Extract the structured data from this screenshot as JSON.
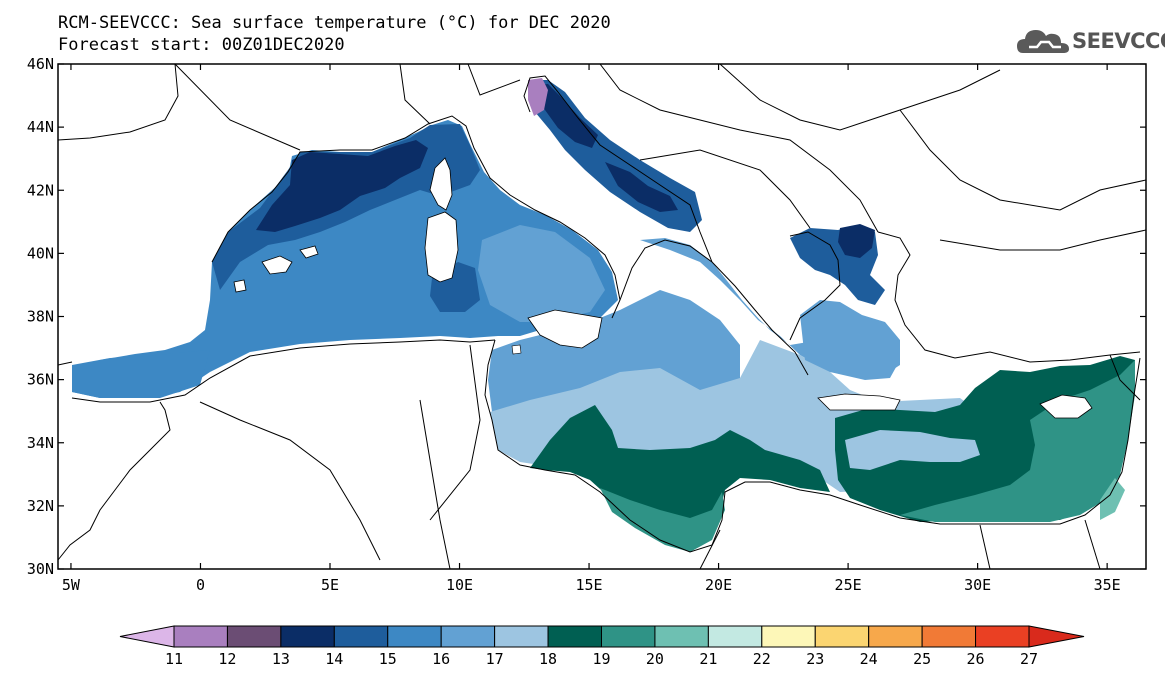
{
  "title_line1": "RCM-SEEVCCC: Sea surface temperature (°C) for DEC 2020",
  "title_line2": "Forecast start: 00Z01DEC2020",
  "logo": {
    "text": "SEEVCCC",
    "icon": "cloud-icon",
    "color": "#5a5a5a"
  },
  "map": {
    "lat_ticks": [
      "46N",
      "44N",
      "42N",
      "40N",
      "38N",
      "36N",
      "34N",
      "32N",
      "30N"
    ],
    "lon_ticks": [
      "5W",
      "0",
      "5E",
      "10E",
      "15E",
      "20E",
      "25E",
      "30E",
      "35E"
    ],
    "lat_range": [
      30,
      46
    ],
    "lon_range": [
      -5.5,
      36.5
    ]
  },
  "colorbar": {
    "labels": [
      "11",
      "12",
      "13",
      "14",
      "15",
      "16",
      "17",
      "18",
      "19",
      "20",
      "21",
      "22",
      "23",
      "24",
      "25",
      "26",
      "27"
    ],
    "colors": [
      "#dcb6e8",
      "#a97fbf",
      "#6b4d74",
      "#0b2d66",
      "#1e5d9c",
      "#3d88c4",
      "#62a1d3",
      "#9dc5e1",
      "#005f52",
      "#2f9386",
      "#6ec0b2",
      "#c3e9e2",
      "#fdf7b8",
      "#fbd571",
      "#f7a84b",
      "#f17a36",
      "#ea4023",
      "#d92a1c"
    ]
  }
}
